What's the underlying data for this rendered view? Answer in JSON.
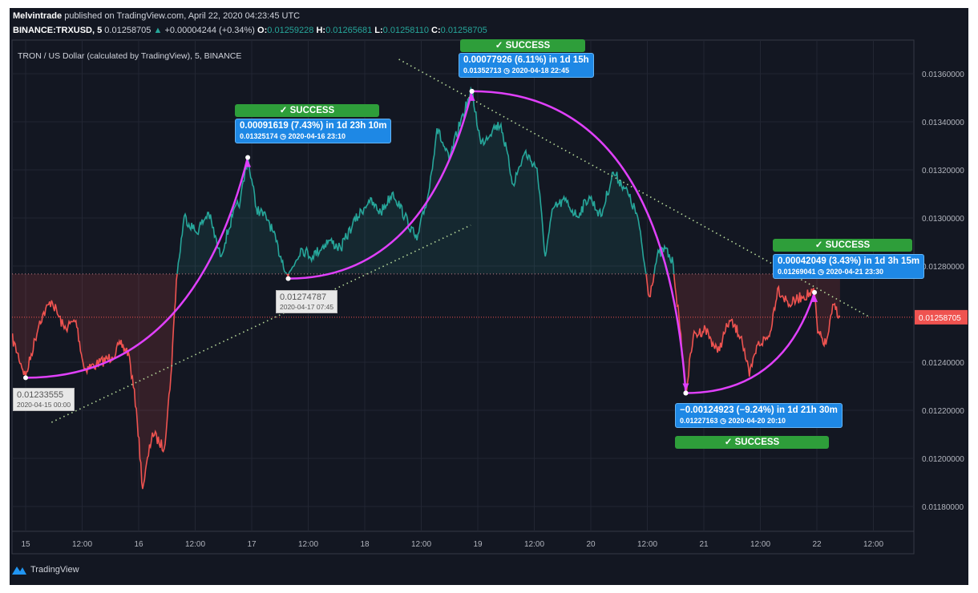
{
  "header": {
    "author": "Melvintrade",
    "published": "published on TradingView.com, April 22, 2020 04:23:45 UTC",
    "symbol": "BINANCE:TRXUSD, 5",
    "last": "0.01258705",
    "change": "+0.00004244 (+0.34%)",
    "o_label": "O:",
    "o": "0.01259228",
    "h_label": "H:",
    "h": "0.01265681",
    "l_label": "L:",
    "l": "0.01258110",
    "c_label": "C:",
    "c": "0.01258705"
  },
  "chart_title": "TRON / US Dollar (calculated by TradingView), 5, BINANCE",
  "footer": {
    "brand": "TradingView"
  },
  "colors": {
    "up": "#26a69a",
    "down": "#ef5350",
    "arc": "#e040fb",
    "label": "#1e88e5",
    "success": "#2e9e3a",
    "background": "#131722"
  },
  "annotations": [
    {
      "change": "0.00091619 (7.43%) in 1d 23h 10m",
      "price": "0.01325174",
      "date": "2020-04-16  23:10",
      "status": "✓ SUCCESS",
      "from": [
        "04-15 00:00",
        0.01233555
      ],
      "to": [
        "04-16 23:10",
        0.01325174
      ]
    },
    {
      "change": "0.00077926 (6.11%) in 1d 15h",
      "price": "0.01352713",
      "date": "2020-04-18  22:45",
      "status": "✓ SUCCESS",
      "from": [
        "04-17 07:45",
        0.01274787
      ],
      "to": [
        "04-18 22:45",
        0.01352713
      ]
    },
    {
      "change": "−0.00124923 (−9.24%) in 1d 21h 30m",
      "price": "0.01227163",
      "date": "2020-04-20  20:10",
      "status": "✓ SUCCESS",
      "from": [
        "04-18 22:45",
        0.01352713
      ],
      "to": [
        "04-20 20:10",
        0.01227163
      ]
    },
    {
      "change": "0.00042049 (3.43%) in 1d 3h 15m",
      "price": "0.01269041",
      "date": "2020-04-21  23:30",
      "status": "✓ SUCCESS",
      "from": [
        "04-20 20:10",
        0.01227163
      ],
      "to": [
        "04-21 23:30",
        0.01269041
      ]
    }
  ],
  "point_labels": [
    {
      "price": "0.01233555",
      "date": "2020-04-15 00:00"
    },
    {
      "price": "0.01274787",
      "date": "2020-04-17 07:45"
    }
  ],
  "chart_data": {
    "type": "area",
    "style": "baseline",
    "baseline": 0.012767,
    "current_price": 0.01258705,
    "current_price_label": "0.01258705",
    "ylim": [
      0.01165,
      0.01368
    ],
    "y_ticks": [
      "0.01360000",
      "0.01340000",
      "0.01320000",
      "0.01300000",
      "0.01280000",
      "0.01240000",
      "0.01220000",
      "0.01200000",
      "0.01180000"
    ],
    "x_ticks": [
      "15",
      "12:00",
      "16",
      "12:00",
      "17",
      "12:00",
      "18",
      "12:00",
      "19",
      "12:00",
      "20",
      "12:00",
      "21",
      "12:00",
      "22",
      "12:00"
    ],
    "grid": true,
    "series": [
      {
        "values": [
          [
            "04-14 21:00",
            0.012507
          ],
          [
            "04-15 00:00",
            0.01234
          ],
          [
            "04-15 03:00",
            0.012573
          ],
          [
            "04-15 05:30",
            0.012657
          ],
          [
            "04-15 08:10",
            0.01254
          ],
          [
            "04-15 10:40",
            0.012573
          ],
          [
            "04-15 12:25",
            0.012373
          ],
          [
            "04-15 15:00",
            0.01239
          ],
          [
            "04-15 18:20",
            0.012423
          ],
          [
            "04-15 20:05",
            0.012473
          ],
          [
            "04-15 21:50",
            0.01244
          ],
          [
            "04-15 23:30",
            0.012207
          ],
          [
            "04-16 00:50",
            0.011873
          ],
          [
            "04-16 02:55",
            0.012107
          ],
          [
            "04-16 05:25",
            0.01204
          ],
          [
            "04-16 06:50",
            0.01234
          ],
          [
            "04-16 08:00",
            0.01274
          ],
          [
            "04-16 09:40",
            0.013007
          ],
          [
            "04-16 12:15",
            0.01294
          ],
          [
            "04-16 14:50",
            0.013023
          ],
          [
            "04-16 17:20",
            0.01284
          ],
          [
            "04-16 19:55",
            0.013007
          ],
          [
            "04-16 21:35",
            0.013073
          ],
          [
            "04-16 23:10",
            0.01325
          ],
          [
            "04-17 01:00",
            0.01304
          ],
          [
            "04-17 03:35",
            0.01299
          ],
          [
            "04-17 06:10",
            0.01284
          ],
          [
            "04-17 07:45",
            0.012757
          ],
          [
            "04-17 10:25",
            0.012873
          ],
          [
            "04-17 12:55",
            0.01284
          ],
          [
            "04-17 16:20",
            0.012907
          ],
          [
            "04-17 18:55",
            0.012873
          ],
          [
            "04-17 21:25",
            0.012973
          ],
          [
            "04-18 00:50",
            0.013073
          ],
          [
            "04-18 03:25",
            0.013023
          ],
          [
            "04-18 06:00",
            0.013107
          ],
          [
            "04-18 08:30",
            0.013007
          ],
          [
            "04-18 11:05",
            0.012907
          ],
          [
            "04-18 13:35",
            0.013107
          ],
          [
            "04-18 15:20",
            0.013373
          ],
          [
            "04-18 17:55",
            0.01324
          ],
          [
            "04-18 20:25",
            0.013407
          ],
          [
            "04-18 22:45",
            0.013527
          ],
          [
            "04-19 00:40",
            0.013307
          ],
          [
            "04-19 03:15",
            0.013373
          ],
          [
            "04-19 04:55",
            0.01339
          ],
          [
            "04-19 07:30",
            0.01314
          ],
          [
            "04-19 10:00",
            0.013273
          ],
          [
            "04-19 12:35",
            0.013207
          ],
          [
            "04-19 14:20",
            0.01284
          ],
          [
            "04-19 16:00",
            0.01304
          ],
          [
            "04-19 18:30",
            0.013073
          ],
          [
            "04-19 21:05",
            0.013007
          ],
          [
            "04-19 23:40",
            0.01309
          ],
          [
            "04-20 02:10",
            0.013007
          ],
          [
            "04-20 04:45",
            0.01319
          ],
          [
            "04-20 07:20",
            0.013123
          ],
          [
            "04-20 09:55",
            0.013007
          ],
          [
            "04-20 12:25",
            0.012673
          ],
          [
            "04-20 14:05",
            0.01284
          ],
          [
            "04-20 15:50",
            0.012873
          ],
          [
            "04-20 17:30",
            0.012807
          ],
          [
            "04-20 18:55",
            0.01254
          ],
          [
            "04-20 20:10",
            0.01227
          ],
          [
            "04-20 21:45",
            0.012507
          ],
          [
            "04-21 00:20",
            0.01254
          ],
          [
            "04-21 02:55",
            0.01244
          ],
          [
            "04-21 05:25",
            0.012573
          ],
          [
            "04-21 08:00",
            0.012507
          ],
          [
            "04-21 09:40",
            0.01234
          ],
          [
            "04-21 11:25",
            0.012473
          ],
          [
            "04-21 13:55",
            0.012507
          ],
          [
            "04-21 15:40",
            0.012707
          ],
          [
            "04-21 18:10",
            0.01264
          ],
          [
            "04-21 20:45",
            0.012673
          ],
          [
            "04-21 23:30",
            0.01269
          ],
          [
            "04-22 00:10",
            0.012523
          ],
          [
            "04-22 01:55",
            0.012473
          ],
          [
            "04-22 03:35",
            0.01264
          ],
          [
            "04-22 04:55",
            0.012587
          ]
        ]
      }
    ],
    "trendlines": [
      {
        "from": [
          "04-15 05:30",
          0.01215
        ],
        "to": [
          "04-18 22:30",
          0.01297
        ]
      },
      {
        "from": [
          "04-18 07:15",
          0.01366
        ],
        "to": [
          "04-22 11:00",
          0.01259
        ]
      }
    ]
  }
}
